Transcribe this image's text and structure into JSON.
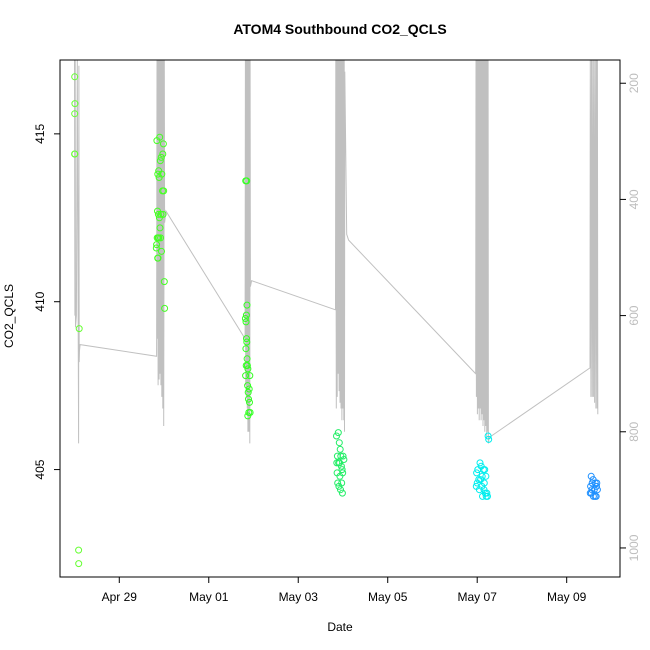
{
  "chart_data": {
    "type": "scatter",
    "title": "ATOM4 Southbound CO2_QCLS",
    "xlabel": "Date",
    "ylabel": "CO2_QCLS",
    "x_ticks": [
      "Apr 29",
      "May 01",
      "May 03",
      "May 05",
      "May 07",
      "May 09"
    ],
    "y_ticks": [
      405,
      410,
      415
    ],
    "y2_ticks": [
      200,
      400,
      600,
      800,
      1000
    ],
    "xlim": [
      "2018-04-27T16:12",
      "2018-05-10T04:36"
    ],
    "ylim": [
      401.8,
      417.2
    ],
    "y2lim": [
      1050,
      160
    ],
    "grid": false,
    "colors": {
      "axes": "#000000",
      "secondary_axis": "#bdbdbd",
      "profile": "#c0c0c0"
    },
    "series": [
      {
        "color": "#66ff33",
        "points": [
          [
            "2018-04-28T00:06",
            416.7
          ],
          [
            "2018-04-28T00:10",
            415.9
          ],
          [
            "2018-04-28T00:04",
            415.6
          ],
          [
            "2018-04-28T00:03",
            414.4
          ],
          [
            "2018-04-28T00:07",
            414.4
          ],
          [
            "2018-04-28T02:30",
            409.2
          ],
          [
            "2018-04-28T02:10",
            402.6
          ],
          [
            "2018-04-28T02:15",
            402.2
          ]
        ]
      },
      {
        "color": "#44ff22",
        "points": [
          [
            "2018-04-29T20:10",
            414.8
          ],
          [
            "2018-04-29T21:40",
            414.9
          ],
          [
            "2018-04-29T23:40",
            414.7
          ],
          [
            "2018-04-29T22:30",
            414.3
          ],
          [
            "2018-04-29T23:20",
            414.4
          ],
          [
            "2018-04-29T22:00",
            414.2
          ],
          [
            "2018-04-29T21:10",
            413.9
          ],
          [
            "2018-04-29T20:40",
            413.8
          ],
          [
            "2018-04-29T21:20",
            413.7
          ],
          [
            "2018-04-29T22:50",
            413.8
          ],
          [
            "2018-04-29T23:10",
            413.3
          ],
          [
            "2018-04-29T23:50",
            413.3
          ],
          [
            "2018-04-29T20:30",
            412.7
          ],
          [
            "2018-04-29T21:00",
            412.6
          ],
          [
            "2018-04-29T21:30",
            412.5
          ],
          [
            "2018-04-29T22:20",
            412.6
          ],
          [
            "2018-04-29T23:30",
            412.6
          ],
          [
            "2018-04-29T21:50",
            412.2
          ],
          [
            "2018-04-29T20:20",
            411.9
          ],
          [
            "2018-04-29T20:50",
            411.9
          ],
          [
            "2018-04-29T21:15",
            411.9
          ],
          [
            "2018-04-29T20:00",
            411.7
          ],
          [
            "2018-04-29T19:50",
            411.6
          ],
          [
            "2018-04-29T22:10",
            411.9
          ],
          [
            "2018-04-29T22:40",
            411.5
          ],
          [
            "2018-04-29T20:35",
            411.3
          ],
          [
            "2018-04-29T20:45",
            411.3
          ],
          [
            "2018-04-30T00:10",
            410.6
          ],
          [
            "2018-04-30T00:20",
            409.8
          ]
        ]
      },
      {
        "color": "#33ff22",
        "points": [
          [
            "2018-05-01T19:50",
            413.6
          ],
          [
            "2018-05-01T20:20",
            413.6
          ],
          [
            "2018-05-01T20:30",
            409.9
          ],
          [
            "2018-05-01T20:10",
            409.6
          ],
          [
            "2018-05-01T19:40",
            409.5
          ],
          [
            "2018-05-01T20:00",
            409.4
          ],
          [
            "2018-05-01T20:15",
            408.9
          ],
          [
            "2018-05-01T20:25",
            408.8
          ],
          [
            "2018-05-01T19:55",
            408.6
          ],
          [
            "2018-05-01T20:35",
            408.3
          ],
          [
            "2018-05-01T20:45",
            408.1
          ],
          [
            "2018-05-01T20:05",
            408.1
          ],
          [
            "2018-05-01T21:00",
            408.0
          ],
          [
            "2018-05-01T19:45",
            407.8
          ],
          [
            "2018-05-01T22:00",
            407.8
          ],
          [
            "2018-05-01T20:50",
            407.5
          ],
          [
            "2018-05-01T21:40",
            407.4
          ],
          [
            "2018-05-01T21:10",
            407.3
          ],
          [
            "2018-05-01T21:20",
            407.1
          ],
          [
            "2018-05-01T21:50",
            407.0
          ],
          [
            "2018-05-01T21:30",
            406.7
          ],
          [
            "2018-05-01T22:10",
            406.7
          ],
          [
            "2018-05-01T20:55",
            406.6
          ]
        ]
      },
      {
        "color": "#22ee66",
        "points": [
          [
            "2018-05-03T20:30",
            406.0
          ],
          [
            "2018-05-03T21:30",
            406.1
          ],
          [
            "2018-05-03T22:00",
            405.8
          ],
          [
            "2018-05-03T22:30",
            405.6
          ],
          [
            "2018-05-03T21:00",
            405.4
          ],
          [
            "2018-05-03T22:50",
            405.4
          ],
          [
            "2018-05-04T00:00",
            405.4
          ],
          [
            "2018-05-04T00:30",
            405.3
          ],
          [
            "2018-05-03T20:40",
            405.2
          ],
          [
            "2018-05-03T21:40",
            405.2
          ],
          [
            "2018-05-03T22:10",
            405.2
          ],
          [
            "2018-05-03T23:10",
            405.1
          ],
          [
            "2018-05-03T23:30",
            405.0
          ],
          [
            "2018-05-03T20:50",
            404.9
          ],
          [
            "2018-05-03T23:50",
            404.9
          ],
          [
            "2018-05-03T22:20",
            404.8
          ],
          [
            "2018-05-03T21:10",
            404.6
          ],
          [
            "2018-05-03T21:50",
            404.5
          ],
          [
            "2018-05-03T22:40",
            404.4
          ],
          [
            "2018-05-03T23:20",
            404.6
          ],
          [
            "2018-05-03T23:40",
            404.3
          ]
        ]
      },
      {
        "color": "#00eeee",
        "points": [
          [
            "2018-05-07T05:50",
            406.0
          ],
          [
            "2018-05-07T06:10",
            405.9
          ],
          [
            "2018-05-07T01:30",
            405.2
          ],
          [
            "2018-05-07T02:10",
            405.1
          ],
          [
            "2018-05-07T00:20",
            405.0
          ],
          [
            "2018-05-07T03:20",
            405.0
          ],
          [
            "2018-05-07T04:00",
            405.0
          ],
          [
            "2018-05-06T23:40",
            404.9
          ],
          [
            "2018-05-07T02:40",
            404.8
          ],
          [
            "2018-05-07T04:40",
            404.8
          ],
          [
            "2018-05-07T00:50",
            404.7
          ],
          [
            "2018-05-07T01:50",
            404.7
          ],
          [
            "2018-05-07T03:50",
            404.6
          ],
          [
            "2018-05-07T00:00",
            404.6
          ],
          [
            "2018-05-07T02:30",
            404.5
          ],
          [
            "2018-05-07T03:40",
            404.4
          ],
          [
            "2018-05-06T23:30",
            404.5
          ],
          [
            "2018-05-07T01:10",
            404.4
          ],
          [
            "2018-05-07T04:20",
            404.3
          ],
          [
            "2018-05-07T05:10",
            404.3
          ],
          [
            "2018-05-07T02:50",
            404.2
          ],
          [
            "2018-05-07T04:50",
            404.2
          ],
          [
            "2018-05-07T05:30",
            404.2
          ]
        ]
      },
      {
        "color": "#1e90ff",
        "points": [
          [
            "2018-05-09T13:10",
            404.8
          ],
          [
            "2018-05-09T14:10",
            404.7
          ],
          [
            "2018-05-09T15:20",
            404.6
          ],
          [
            "2018-05-09T13:40",
            404.6
          ],
          [
            "2018-05-09T16:00",
            404.5
          ],
          [
            "2018-05-09T12:50",
            404.5
          ],
          [
            "2018-05-09T14:50",
            404.4
          ],
          [
            "2018-05-09T13:20",
            404.3
          ],
          [
            "2018-05-09T16:30",
            404.4
          ],
          [
            "2018-05-09T15:10",
            404.2
          ],
          [
            "2018-05-09T14:20",
            404.2
          ],
          [
            "2018-05-09T13:30",
            404.4
          ],
          [
            "2018-05-09T15:50",
            404.2
          ],
          [
            "2018-05-09T16:10",
            404.6
          ],
          [
            "2018-05-09T12:40",
            404.3
          ]
        ]
      }
    ],
    "profile_line": {
      "axis": "right",
      "points": [
        [
          "2018-04-28T00:00",
          160
        ],
        [
          "2018-04-28T00:10",
          600
        ],
        [
          "2018-04-28T00:20",
          160
        ],
        [
          "2018-04-28T00:30",
          620
        ],
        [
          "2018-04-28T01:00",
          600
        ],
        [
          "2018-04-28T01:30",
          160
        ],
        [
          "2018-04-28T02:00",
          670
        ],
        [
          "2018-04-28T02:10",
          820
        ],
        [
          "2018-04-28T02:20",
          170
        ],
        [
          "2018-04-28T02:30",
          680
        ],
        [
          "2018-04-28T02:40",
          660
        ],
        [
          "2018-04-28T03:00",
          650
        ],
        [
          "2018-04-29T20:00",
          670
        ],
        [
          "2018-04-29T20:15",
          160
        ],
        [
          "2018-04-29T20:25",
          640
        ],
        [
          "2018-04-29T20:40",
          160
        ],
        [
          "2018-04-29T20:50",
          720
        ],
        [
          "2018-04-29T21:10",
          160
        ],
        [
          "2018-04-29T21:20",
          710
        ],
        [
          "2018-04-29T21:40",
          160
        ],
        [
          "2018-04-29T21:50",
          700
        ],
        [
          "2018-04-29T22:10",
          160
        ],
        [
          "2018-04-29T22:20",
          720
        ],
        [
          "2018-04-29T22:40",
          160
        ],
        [
          "2018-04-29T22:50",
          740
        ],
        [
          "2018-04-29T23:10",
          160
        ],
        [
          "2018-04-29T23:20",
          760
        ],
        [
          "2018-04-29T23:40",
          160
        ],
        [
          "2018-04-29T23:50",
          790
        ],
        [
          "2018-04-30T00:10",
          160
        ],
        [
          "2018-04-30T00:20",
          440
        ],
        [
          "2018-04-30T01:00",
          420
        ],
        [
          "2018-05-01T19:30",
          640
        ],
        [
          "2018-05-01T19:40",
          160
        ],
        [
          "2018-05-01T19:50",
          720
        ],
        [
          "2018-05-01T20:00",
          160
        ],
        [
          "2018-05-01T20:10",
          740
        ],
        [
          "2018-05-01T20:25",
          160
        ],
        [
          "2018-05-01T20:40",
          760
        ],
        [
          "2018-05-01T20:50",
          160
        ],
        [
          "2018-05-01T21:00",
          800
        ],
        [
          "2018-05-01T21:15",
          160
        ],
        [
          "2018-05-01T21:30",
          800
        ],
        [
          "2018-05-01T21:45",
          160
        ],
        [
          "2018-05-01T22:00",
          820
        ],
        [
          "2018-05-01T22:10",
          160
        ],
        [
          "2018-05-01T22:20",
          550
        ],
        [
          "2018-05-01T23:00",
          540
        ],
        [
          "2018-05-03T20:00",
          590
        ],
        [
          "2018-05-03T20:10",
          160
        ],
        [
          "2018-05-03T20:25",
          760
        ],
        [
          "2018-05-03T20:40",
          160
        ],
        [
          "2018-05-03T20:55",
          740
        ],
        [
          "2018-05-03T21:10",
          160
        ],
        [
          "2018-05-03T21:25",
          700
        ],
        [
          "2018-05-03T21:40",
          160
        ],
        [
          "2018-05-03T21:55",
          730
        ],
        [
          "2018-05-03T22:10",
          160
        ],
        [
          "2018-05-03T22:25",
          750
        ],
        [
          "2018-05-03T22:40",
          160
        ],
        [
          "2018-05-03T22:55",
          760
        ],
        [
          "2018-05-03T23:10",
          160
        ],
        [
          "2018-05-03T23:25",
          780
        ],
        [
          "2018-05-03T23:40",
          160
        ],
        [
          "2018-05-03T23:55",
          760
        ],
        [
          "2018-05-04T00:10",
          160
        ],
        [
          "2018-05-04T00:25",
          780
        ],
        [
          "2018-05-04T00:40",
          160
        ],
        [
          "2018-05-04T00:50",
          800
        ],
        [
          "2018-05-04T01:00",
          180
        ],
        [
          "2018-05-04T02:00",
          460
        ],
        [
          "2018-05-04T03:00",
          470
        ],
        [
          "2018-05-06T23:10",
          700
        ],
        [
          "2018-05-06T23:20",
          160
        ],
        [
          "2018-05-06T23:35",
          740
        ],
        [
          "2018-05-06T23:50",
          160
        ],
        [
          "2018-05-07T00:05",
          770
        ],
        [
          "2018-05-07T00:20",
          160
        ],
        [
          "2018-05-07T00:35",
          760
        ],
        [
          "2018-05-07T00:50",
          160
        ],
        [
          "2018-05-07T01:05",
          780
        ],
        [
          "2018-05-07T01:20",
          160
        ],
        [
          "2018-05-07T01:35",
          760
        ],
        [
          "2018-05-07T01:50",
          160
        ],
        [
          "2018-05-07T02:05",
          780
        ],
        [
          "2018-05-07T02:20",
          160
        ],
        [
          "2018-05-07T02:35",
          770
        ],
        [
          "2018-05-07T02:50",
          160
        ],
        [
          "2018-05-07T03:05",
          790
        ],
        [
          "2018-05-07T03:20",
          160
        ],
        [
          "2018-05-07T03:35",
          780
        ],
        [
          "2018-05-07T03:50",
          160
        ],
        [
          "2018-05-07T04:05",
          800
        ],
        [
          "2018-05-07T04:20",
          160
        ],
        [
          "2018-05-07T04:35",
          790
        ],
        [
          "2018-05-07T04:50",
          160
        ],
        [
          "2018-05-07T05:05",
          810
        ],
        [
          "2018-05-07T05:20",
          160
        ],
        [
          "2018-05-07T05:35",
          800
        ],
        [
          "2018-05-07T05:50",
          160
        ],
        [
          "2018-05-07T06:00",
          820
        ],
        [
          "2018-05-07T06:20",
          810
        ],
        [
          "2018-05-09T12:30",
          690
        ],
        [
          "2018-05-09T12:40",
          160
        ],
        [
          "2018-05-09T13:00",
          740
        ],
        [
          "2018-05-09T13:20",
          160
        ],
        [
          "2018-05-09T13:40",
          740
        ],
        [
          "2018-05-09T14:00",
          160
        ],
        [
          "2018-05-09T14:20",
          740
        ],
        [
          "2018-05-09T14:40",
          160
        ],
        [
          "2018-05-09T15:00",
          750
        ],
        [
          "2018-05-09T15:20",
          160
        ],
        [
          "2018-05-09T15:40",
          760
        ],
        [
          "2018-05-09T16:00",
          160
        ],
        [
          "2018-05-09T16:20",
          760
        ],
        [
          "2018-05-09T16:30",
          160
        ],
        [
          "2018-05-09T16:40",
          770
        ]
      ]
    }
  }
}
